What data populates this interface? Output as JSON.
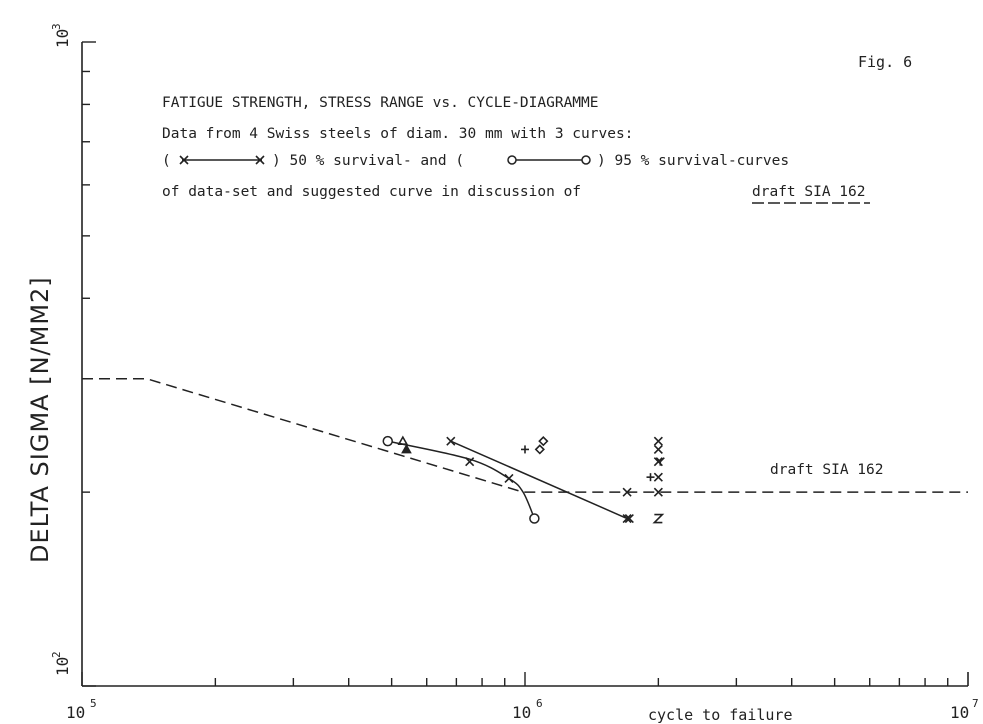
{
  "chart_data": {
    "type": "scatter",
    "x_scale": "log",
    "y_scale": "log",
    "xlim": [
      100000,
      10000000
    ],
    "ylim": [
      100,
      1000
    ],
    "ylabel": "DELTA SIGMA [N/MM2]",
    "xlabel": "cycle to failure",
    "x_tick_labels": [
      {
        "base": "10",
        "exp": "5",
        "value": 100000
      },
      {
        "base": "10",
        "exp": "6",
        "value": 1000000
      },
      {
        "base": "10",
        "exp": "7",
        "value": 10000000
      }
    ],
    "y_tick_labels": [
      {
        "base": "10",
        "exp": "2",
        "value": 100
      },
      {
        "base": "10",
        "exp": "3",
        "value": 1000
      }
    ],
    "fig_label": "Fig. 6",
    "title_lines": [
      "FATIGUE STRENGTH, STRESS RANGE vs. CYCLE-DIAGRAMME",
      "Data from 4 Swiss steels of diam. 30 mm with 3 curves:"
    ],
    "legend": {
      "open": "(",
      "close_mid": ") 50 % survival- and (",
      "close_end": ") 95 % survival-curves",
      "line4_prefix": "of data-set and suggested curve in discussion of",
      "line4_link": "draft SIA 162"
    },
    "annotation": "draft SIA 162",
    "series": [
      {
        "marker": "x",
        "line": "solid",
        "x": [
          680000,
          1700000
        ],
        "y": [
          240,
          182
        ]
      },
      {
        "marker": "circle",
        "line": "solid",
        "x": [
          490000,
          750000,
          920000,
          990000,
          1050000
        ],
        "y": [
          240,
          225,
          210,
          200,
          182
        ]
      },
      {
        "name": "draft SIA 162",
        "marker": "none",
        "line": "dashed",
        "x": [
          100000,
          140000,
          990000,
          10000000
        ],
        "y": [
          300,
          300,
          200,
          200
        ]
      }
    ],
    "points": [
      {
        "marker": "x",
        "x": 750000,
        "y": 223
      },
      {
        "marker": "x",
        "x": 920000,
        "y": 210
      },
      {
        "marker": "x",
        "x": 1700000,
        "y": 200
      },
      {
        "marker": "x",
        "x": 2000000,
        "y": 200
      },
      {
        "marker": "x",
        "x": 2000000,
        "y": 211
      },
      {
        "marker": "x",
        "x": 2000000,
        "y": 223
      },
      {
        "marker": "x",
        "x": 2000000,
        "y": 233
      },
      {
        "marker": "x",
        "x": 2000000,
        "y": 240
      },
      {
        "marker": "x",
        "x": 1720000,
        "y": 182
      },
      {
        "marker": "Z",
        "x": 2000000,
        "y": 182
      },
      {
        "marker": "triangle-open",
        "x": 530000,
        "y": 240
      },
      {
        "marker": "triangle-filled",
        "x": 540000,
        "y": 233
      },
      {
        "marker": "diamond",
        "x": 1100000,
        "y": 240
      },
      {
        "marker": "diamond",
        "x": 1080000,
        "y": 233
      },
      {
        "marker": "plus",
        "x": 1000000,
        "y": 233
      },
      {
        "marker": "plus",
        "x": 1920000,
        "y": 211
      },
      {
        "marker": "Y",
        "x": 2020000,
        "y": 223
      }
    ]
  }
}
